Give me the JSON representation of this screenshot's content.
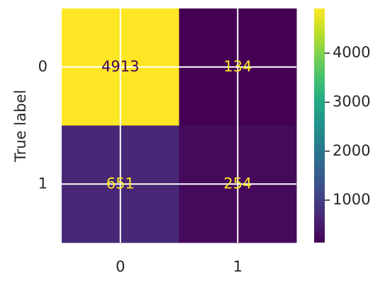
{
  "chart_data": {
    "type": "heatmap",
    "ylabel": "True label",
    "x_categories": [
      "0",
      "1"
    ],
    "y_categories": [
      "0",
      "1"
    ],
    "values": [
      [
        4913,
        134
      ],
      [
        651,
        254
      ]
    ],
    "colormap": "viridis",
    "clim": [
      134,
      4913
    ],
    "colorbar_ticks": [
      1000,
      2000,
      3000,
      4000
    ],
    "grid": true
  }
}
